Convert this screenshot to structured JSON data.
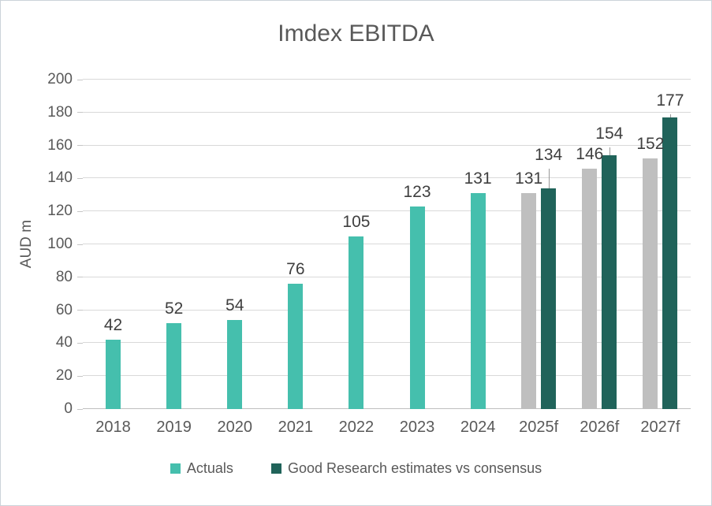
{
  "chart_data": {
    "type": "bar",
    "title": "Imdex EBITDA",
    "ylabel": "AUD m",
    "ylim": [
      0,
      200
    ],
    "ytick_step": 20,
    "yticks": [
      0,
      20,
      40,
      60,
      80,
      100,
      120,
      140,
      160,
      180,
      200
    ],
    "grid": true,
    "categories": [
      "2018",
      "2019",
      "2020",
      "2021",
      "2022",
      "2023",
      "2024",
      "2025f",
      "2026f",
      "2027f"
    ],
    "series": [
      {
        "key": "actuals",
        "name": "Actuals",
        "color": "#45bfad",
        "values": [
          42,
          52,
          54,
          76,
          105,
          123,
          131,
          null,
          null,
          null
        ]
      },
      {
        "key": "consensus",
        "name": null,
        "color": "#bfbfbf",
        "values": [
          null,
          null,
          null,
          null,
          null,
          null,
          null,
          131,
          146,
          152
        ]
      },
      {
        "key": "estimates",
        "name": "Good Research estimates vs consensus",
        "color": "#20635a",
        "values": [
          null,
          null,
          null,
          null,
          null,
          null,
          null,
          134,
          154,
          177
        ],
        "whisker_to": [
          null,
          null,
          null,
          null,
          null,
          null,
          null,
          146,
          159,
          179
        ]
      }
    ],
    "legend_position": "bottom",
    "legend": [
      {
        "label": "Actuals",
        "color": "#45bfad"
      },
      {
        "label": "Good Research estimates vs consensus",
        "color": "#20635a"
      }
    ]
  }
}
